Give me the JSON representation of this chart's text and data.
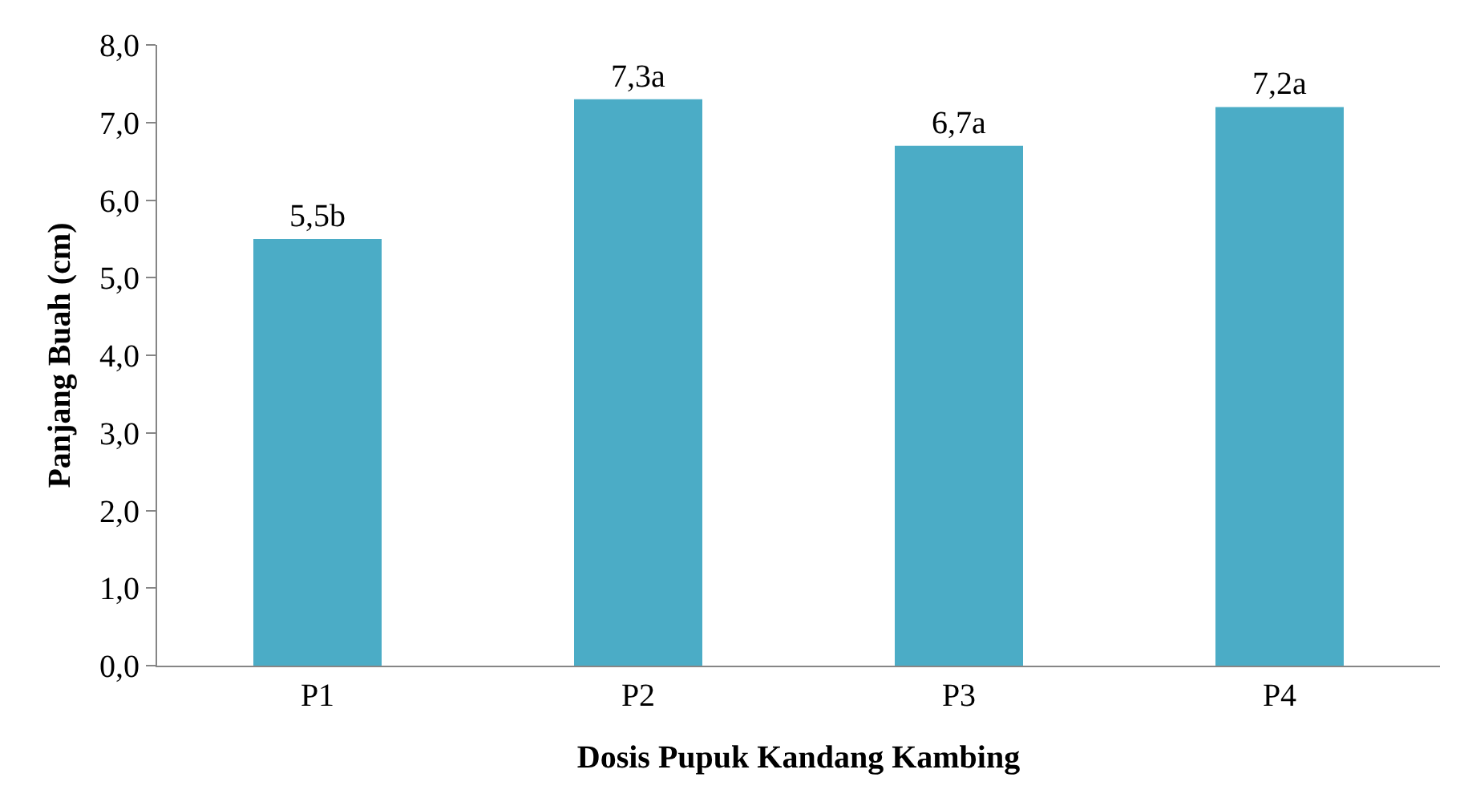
{
  "chart_data": {
    "type": "bar",
    "xlabel": "Dosis Pupuk Kandang Kambing",
    "ylabel": "Panjang Buah (cm)",
    "categories": [
      "P1",
      "P2",
      "P3",
      "P4"
    ],
    "values": [
      5.5,
      7.3,
      6.7,
      7.2
    ],
    "value_labels": [
      "5,5b",
      "7,3a",
      "6,7a",
      "7,2a"
    ],
    "color": "#4bacc6",
    "ylim": [
      0,
      8
    ],
    "yticks": [
      {
        "value": 0,
        "label": "0,0"
      },
      {
        "value": 1,
        "label": "1,0"
      },
      {
        "value": 2,
        "label": "2,0"
      },
      {
        "value": 3,
        "label": "3,0"
      },
      {
        "value": 4,
        "label": "4,0"
      },
      {
        "value": 5,
        "label": "5,0"
      },
      {
        "value": 6,
        "label": "6,0"
      },
      {
        "value": 7,
        "label": "7,0"
      },
      {
        "value": 8,
        "label": "8,0"
      }
    ],
    "grid": false
  }
}
